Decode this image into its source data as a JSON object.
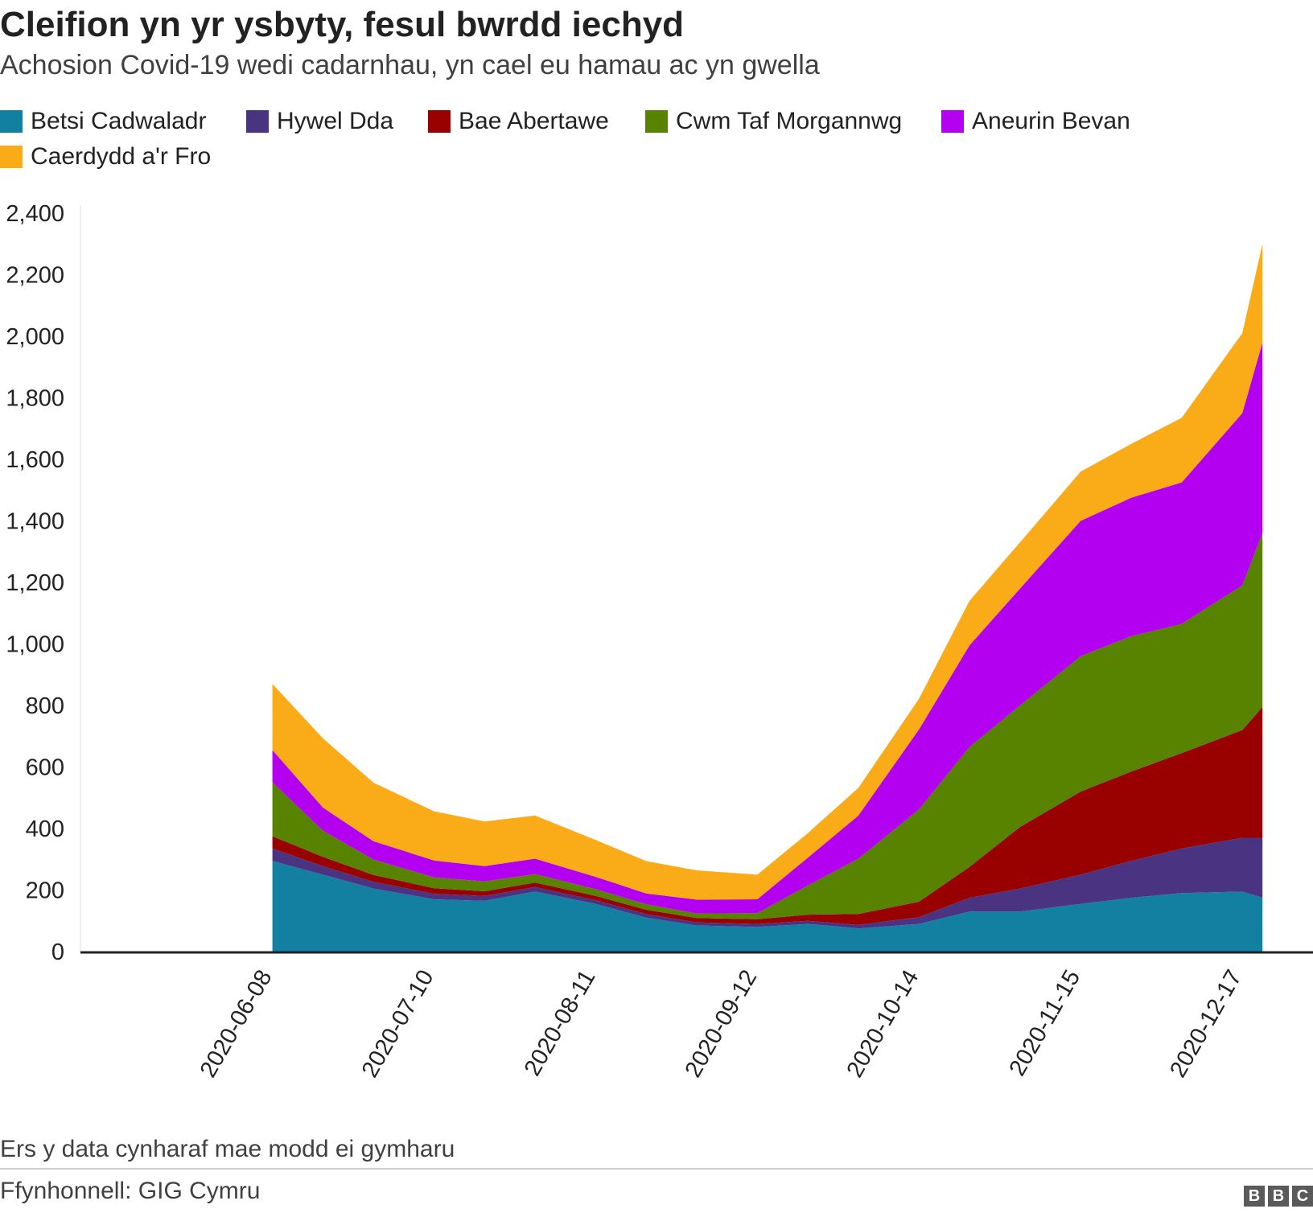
{
  "chart_data": {
    "type": "area",
    "stacked": true,
    "title": "Cleifion yn yr ysbyty, fesul bwrdd iechyd",
    "subtitle": "Achosion Covid-19 wedi cadarnhau, yn cael eu hamau ac yn gwella",
    "xlabel": "",
    "ylabel": "",
    "ylim": [
      0,
      2400
    ],
    "yticks": [
      "0",
      "200",
      "400",
      "600",
      "800",
      "1,000",
      "1,200",
      "1,400",
      "1,600",
      "1,800",
      "2,000",
      "2,200",
      "2,400"
    ],
    "yticks_values": [
      0,
      200,
      400,
      600,
      800,
      1000,
      1200,
      1400,
      1600,
      1800,
      2000,
      2200,
      2400
    ],
    "xticks": [
      "2020-06-08",
      "2020-07-10",
      "2020-08-11",
      "2020-09-12",
      "2020-10-14",
      "2020-11-15",
      "2020-12-17"
    ],
    "x": [
      "2020-06-08",
      "2020-06-18",
      "2020-06-28",
      "2020-07-10",
      "2020-07-20",
      "2020-07-30",
      "2020-08-11",
      "2020-08-21",
      "2020-08-31",
      "2020-09-12",
      "2020-09-22",
      "2020-10-02",
      "2020-10-14",
      "2020-10-24",
      "2020-11-03",
      "2020-11-15",
      "2020-11-25",
      "2020-12-05",
      "2020-12-17",
      "2020-12-21"
    ],
    "series": [
      {
        "name": "Betsi Cadwaladr",
        "color": "#1380A1",
        "values": [
          295,
          250,
          205,
          170,
          165,
          195,
          155,
          110,
          85,
          80,
          90,
          75,
          90,
          130,
          130,
          155,
          175,
          190,
          195,
          175
        ]
      },
      {
        "name": "Hywel Dda",
        "color": "#4A3482",
        "values": [
          40,
          28,
          22,
          18,
          16,
          15,
          12,
          12,
          10,
          10,
          10,
          12,
          22,
          45,
          75,
          95,
          120,
          145,
          175,
          195
        ]
      },
      {
        "name": "Bae Abertawe",
        "color": "#990000",
        "values": [
          40,
          30,
          22,
          18,
          15,
          14,
          14,
          14,
          14,
          15,
          20,
          35,
          50,
          100,
          200,
          270,
          290,
          310,
          350,
          425
        ]
      },
      {
        "name": "Cwm Taf Morgannwg",
        "color": "#588300",
        "values": [
          175,
          85,
          50,
          35,
          32,
          28,
          22,
          18,
          15,
          20,
          95,
          180,
          300,
          390,
          395,
          440,
          440,
          420,
          470,
          565
        ]
      },
      {
        "name": "Aneurin Bevan",
        "color": "#B400F0",
        "values": [
          105,
          75,
          60,
          55,
          50,
          50,
          40,
          35,
          45,
          45,
          90,
          140,
          260,
          330,
          380,
          440,
          450,
          460,
          560,
          620
        ]
      },
      {
        "name": "Caerdydd a'r Fro",
        "color": "#FAAB18",
        "values": [
          215,
          225,
          190,
          160,
          145,
          140,
          120,
          105,
          95,
          80,
          80,
          90,
          100,
          145,
          150,
          160,
          175,
          210,
          260,
          320
        ]
      }
    ],
    "legend_position": "top-left",
    "grid": false
  },
  "footer": {
    "note": "Ers y data cynharaf mae modd ei gymharu",
    "source": "Ffynhonnell: GIG Cymru",
    "logo_letters": [
      "B",
      "B",
      "C"
    ]
  }
}
